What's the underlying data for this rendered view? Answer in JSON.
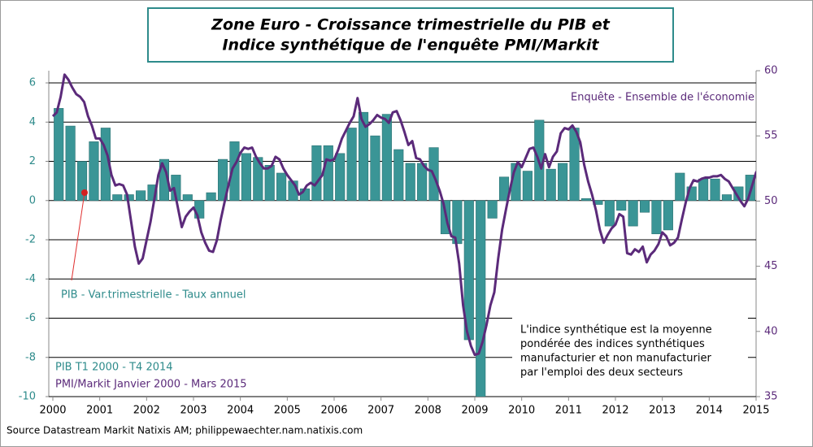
{
  "chart_data": {
    "type": "bar-line",
    "title": [
      "Zone Euro - Croissance trimestrielle du PIB et",
      "Indice synthétique de l'enquête PMI/Markit"
    ],
    "xlim": [
      2000,
      2015
    ],
    "xticks": [
      2000,
      2001,
      2002,
      2003,
      2004,
      2005,
      2006,
      2007,
      2008,
      2009,
      2010,
      2011,
      2012,
      2013,
      2014,
      2015
    ],
    "ylim": [
      -10,
      6
    ],
    "yticks": [
      -10,
      -8,
      -6,
      -4,
      -2,
      0,
      2,
      4,
      6
    ],
    "y2lim": [
      35,
      60
    ],
    "y2ticks": [
      35,
      40,
      45,
      50,
      55,
      60
    ],
    "grid": true,
    "series": [
      {
        "name": "PIB - Var.trimestrielle  - Taux annuel",
        "type": "bar",
        "color": "#3a9596",
        "x": [
          2000.125,
          2000.375,
          2000.625,
          2000.875,
          2001.125,
          2001.375,
          2001.625,
          2001.875,
          2002.125,
          2002.375,
          2002.625,
          2002.875,
          2003.125,
          2003.375,
          2003.625,
          2003.875,
          2004.125,
          2004.375,
          2004.625,
          2004.875,
          2005.125,
          2005.375,
          2005.625,
          2005.875,
          2006.125,
          2006.375,
          2006.625,
          2006.875,
          2007.125,
          2007.375,
          2007.625,
          2007.875,
          2008.125,
          2008.375,
          2008.625,
          2008.875,
          2009.125,
          2009.375,
          2009.625,
          2009.875,
          2010.125,
          2010.375,
          2010.625,
          2010.875,
          2011.125,
          2011.375,
          2011.625,
          2011.875,
          2012.125,
          2012.375,
          2012.625,
          2012.875,
          2013.125,
          2013.375,
          2013.625,
          2013.875,
          2014.125,
          2014.375,
          2014.625,
          2014.875
        ],
        "values": [
          4.7,
          3.8,
          2.0,
          3.0,
          3.7,
          0.3,
          0.3,
          0.5,
          0.8,
          2.1,
          1.3,
          0.3,
          -0.9,
          0.4,
          2.1,
          3.0,
          2.4,
          2.2,
          1.8,
          1.4,
          1.0,
          0.6,
          2.8,
          2.8,
          2.4,
          3.7,
          4.5,
          3.3,
          4.4,
          2.6,
          1.9,
          1.9,
          2.7,
          -1.7,
          -2.2,
          -7.1,
          -11.0,
          -0.9,
          1.2,
          1.9,
          1.5,
          4.1,
          1.6,
          1.9,
          3.7,
          0.1,
          -0.2,
          -1.3,
          -0.5,
          -1.3,
          -0.6,
          -1.7,
          -1.5,
          1.4,
          0.7,
          1.1,
          1.1,
          0.3,
          0.7,
          1.3
        ]
      },
      {
        "name": "Enquête - Ensemble de l'économie",
        "type": "line",
        "axis": "y2",
        "color": "#5b2a7a",
        "x": [
          2000,
          2000.083,
          2000.167,
          2000.25,
          2000.333,
          2000.417,
          2000.5,
          2000.583,
          2000.667,
          2000.75,
          2000.833,
          2000.917,
          2001,
          2001.083,
          2001.167,
          2001.25,
          2001.333,
          2001.417,
          2001.5,
          2001.583,
          2001.667,
          2001.75,
          2001.833,
          2001.917,
          2002,
          2002.083,
          2002.167,
          2002.25,
          2002.333,
          2002.417,
          2002.5,
          2002.583,
          2002.667,
          2002.75,
          2002.833,
          2002.917,
          2003,
          2003.083,
          2003.167,
          2003.25,
          2003.333,
          2003.417,
          2003.5,
          2003.583,
          2003.667,
          2003.75,
          2003.833,
          2003.917,
          2004,
          2004.083,
          2004.167,
          2004.25,
          2004.333,
          2004.417,
          2004.5,
          2004.583,
          2004.667,
          2004.75,
          2004.833,
          2004.917,
          2005,
          2005.083,
          2005.167,
          2005.25,
          2005.333,
          2005.417,
          2005.5,
          2005.583,
          2005.667,
          2005.75,
          2005.833,
          2005.917,
          2006,
          2006.083,
          2006.167,
          2006.25,
          2006.333,
          2006.417,
          2006.5,
          2006.583,
          2006.667,
          2006.75,
          2006.833,
          2006.917,
          2007,
          2007.083,
          2007.167,
          2007.25,
          2007.333,
          2007.417,
          2007.5,
          2007.583,
          2007.667,
          2007.75,
          2007.833,
          2007.917,
          2008,
          2008.083,
          2008.167,
          2008.25,
          2008.333,
          2008.417,
          2008.5,
          2008.583,
          2008.667,
          2008.75,
          2008.833,
          2008.917,
          2009,
          2009.083,
          2009.167,
          2009.25,
          2009.333,
          2009.417,
          2009.5,
          2009.583,
          2009.667,
          2009.75,
          2009.833,
          2009.917,
          2010,
          2010.083,
          2010.167,
          2010.25,
          2010.333,
          2010.417,
          2010.5,
          2010.583,
          2010.667,
          2010.75,
          2010.833,
          2010.917,
          2011,
          2011.083,
          2011.167,
          2011.25,
          2011.333,
          2011.417,
          2011.5,
          2011.583,
          2011.667,
          2011.75,
          2011.833,
          2011.917,
          2012,
          2012.083,
          2012.167,
          2012.25,
          2012.333,
          2012.417,
          2012.5,
          2012.583,
          2012.667,
          2012.75,
          2012.833,
          2012.917,
          2013,
          2013.083,
          2013.167,
          2013.25,
          2013.333,
          2013.417,
          2013.5,
          2013.583,
          2013.667,
          2013.75,
          2013.833,
          2013.917,
          2014,
          2014.083,
          2014.167,
          2014.25,
          2014.333,
          2014.417,
          2014.5,
          2014.583,
          2014.667,
          2014.75,
          2014.833,
          2014.917,
          2015,
          2015.083,
          2015.167
        ],
        "values": [
          56.5,
          56.8,
          58.0,
          59.7,
          59.3,
          58.7,
          58.2,
          58.0,
          57.6,
          56.5,
          55.8,
          54.8,
          54.8,
          54.3,
          53.5,
          52.0,
          51.2,
          51.3,
          51.2,
          50.5,
          48.5,
          46.5,
          45.2,
          45.6,
          47.0,
          48.4,
          50.2,
          52.0,
          52.9,
          52.2,
          50.8,
          51.0,
          49.5,
          48.0,
          48.8,
          49.2,
          49.5,
          48.9,
          47.6,
          46.8,
          46.2,
          46.1,
          47.0,
          48.6,
          50.0,
          51.3,
          52.5,
          53.0,
          53.7,
          54.1,
          54.0,
          54.1,
          53.4,
          52.9,
          52.5,
          52.5,
          52.7,
          53.4,
          53.2,
          52.5,
          52.0,
          51.6,
          51.2,
          50.5,
          50.7,
          51.2,
          51.4,
          51.2,
          51.6,
          52.0,
          53.2,
          53.1,
          53.2,
          53.9,
          54.8,
          55.4,
          56.0,
          56.5,
          57.9,
          56.3,
          55.7,
          55.9,
          56.2,
          56.6,
          56.4,
          56.3,
          56.0,
          56.8,
          56.9,
          56.2,
          55.3,
          54.3,
          54.6,
          53.3,
          53.2,
          52.7,
          52.4,
          52.3,
          51.6,
          50.8,
          49.8,
          48.3,
          47.3,
          47.2,
          45.2,
          42.0,
          40.0,
          38.9,
          38.2,
          38.3,
          39.2,
          40.5,
          42.0,
          43.0,
          45.6,
          47.8,
          49.4,
          50.9,
          52.2,
          53.0,
          52.6,
          53.3,
          54.0,
          54.1,
          53.4,
          52.5,
          53.6,
          52.6,
          53.4,
          53.8,
          55.2,
          55.6,
          55.5,
          55.8,
          55.3,
          54.5,
          52.8,
          51.5,
          50.5,
          49.3,
          47.8,
          46.8,
          47.4,
          47.9,
          48.2,
          49.0,
          48.8,
          46.0,
          45.9,
          46.3,
          46.1,
          46.5,
          45.3,
          45.9,
          46.2,
          46.7,
          47.6,
          47.3,
          46.6,
          46.8,
          47.2,
          48.6,
          49.9,
          51.0,
          51.6,
          51.5,
          51.7,
          51.8,
          51.8,
          51.9,
          51.9,
          52.0,
          51.7,
          51.5,
          51.0,
          50.5,
          50.0,
          49.6,
          50.2,
          51.2,
          52.2,
          52.6,
          52.8
        ]
      }
    ],
    "annotations": {
      "gdp_period": "PIB T1 2000 - T4 2014",
      "pmi_period": "PMI/Markit Janvier 2000 - Mars 2015",
      "note": [
        "L'indice synthétique est la moyenne",
        "pondérée des indices synthétiques",
        "manufacturier et non manufacturier",
        "par l'emploi des deux secteurs"
      ],
      "source": "Source Datastream Markit Natixis AM; philippewaechter.nam.natixis.com"
    }
  }
}
